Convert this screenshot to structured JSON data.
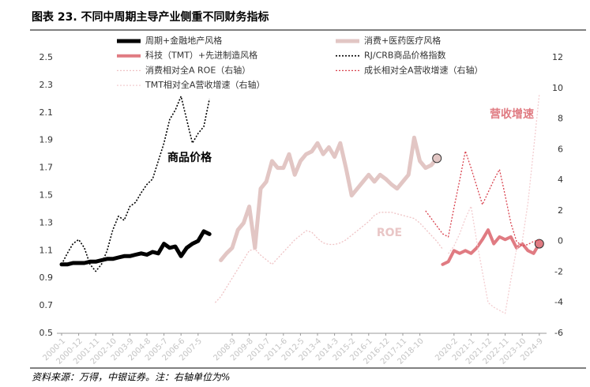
{
  "chart_data": {
    "type": "line",
    "title": "图表 23. 不同中周期主导产业侧重不同财务指标",
    "source": "资料来源：万得，中银证券。注：右轴单位为%",
    "annotations": [
      "商品价格",
      "ROE",
      "营收增速"
    ],
    "categories": [
      "2000-1",
      null,
      null,
      "2000-12",
      null,
      null,
      "2001-11",
      null,
      null,
      "2002-10",
      null,
      null,
      "2003-9",
      null,
      null,
      "2004-8",
      null,
      null,
      "2005-7",
      null,
      null,
      "2006-6",
      null,
      null,
      "2007-5",
      null,
      null,
      null,
      null,
      null,
      "2008-9",
      null,
      null,
      "2009-8",
      null,
      null,
      "2010-7",
      null,
      null,
      "2011-6",
      null,
      null,
      "2012-5",
      null,
      null,
      "2013-4",
      null,
      null,
      "2014-3",
      null,
      null,
      "2015-2",
      null,
      null,
      "2016-1",
      null,
      null,
      "2016-12",
      null,
      null,
      "2017-11",
      null,
      null,
      "2018-10",
      null,
      null,
      null,
      null,
      null,
      "2020-2",
      null,
      null,
      "2021-1",
      null,
      null,
      "2021-12",
      null,
      null,
      "2022-11",
      null,
      null,
      "2023-10",
      null,
      null,
      "2024-9"
    ],
    "ylim": [
      0.5,
      2.5
    ],
    "yticks": [
      0.5,
      0.7,
      0.9,
      1.1,
      1.3,
      1.5,
      1.7,
      1.9,
      2.1,
      2.3,
      2.5
    ],
    "y2lim": [
      -6,
      12
    ],
    "y2ticks": [
      -6,
      -4,
      -2,
      0,
      2,
      4,
      6,
      8,
      10,
      12
    ],
    "grid": false,
    "series": [
      {
        "name": "周期+金融地产风格",
        "color": "#000000",
        "line_width": 5,
        "dash": "none",
        "values": [
          1.0,
          1.0,
          1.01,
          1.01,
          1.01,
          1.02,
          1.02,
          1.03,
          1.04,
          1.04,
          1.05,
          1.06,
          1.06,
          1.07,
          1.08,
          1.07,
          1.09,
          1.08,
          1.15,
          1.12,
          1.13,
          1.06,
          1.12,
          1.15,
          1.17,
          1.24,
          1.22,
          null,
          null,
          null,
          null,
          null,
          null,
          null,
          null,
          null,
          null,
          null,
          null,
          null,
          null,
          null,
          null,
          null,
          null,
          null,
          null,
          null,
          null,
          null,
          null,
          null,
          null,
          null,
          null,
          null,
          null,
          null,
          null,
          null,
          null,
          null,
          null,
          null,
          null,
          null,
          null,
          null,
          null,
          null,
          null,
          null,
          null,
          null,
          null,
          null,
          null,
          null,
          null,
          null,
          null,
          null,
          null,
          null,
          null
        ]
      },
      {
        "name": "消费+医药医疗风格",
        "color": "#e2c6c4",
        "line_width": 5,
        "dash": "none",
        "end_marker": true,
        "values": [
          null,
          null,
          null,
          null,
          null,
          null,
          null,
          null,
          null,
          null,
          null,
          null,
          null,
          null,
          null,
          null,
          null,
          null,
          null,
          null,
          null,
          null,
          null,
          null,
          null,
          null,
          null,
          null,
          1.03,
          1.08,
          1.12,
          1.25,
          1.3,
          1.42,
          1.12,
          1.55,
          1.6,
          1.75,
          1.7,
          1.7,
          1.8,
          1.65,
          1.75,
          1.8,
          1.82,
          1.88,
          1.8,
          1.85,
          1.78,
          1.88,
          1.7,
          1.5,
          1.55,
          1.6,
          1.65,
          1.6,
          1.65,
          1.62,
          1.58,
          1.55,
          1.6,
          1.65,
          1.92,
          1.75,
          1.7,
          1.72,
          1.77,
          null,
          null,
          null,
          null,
          null,
          null,
          null,
          null,
          null,
          null,
          null,
          null,
          null,
          null,
          null,
          null,
          null,
          null
        ]
      },
      {
        "name": "科技（TMT）+先进制造风格",
        "color": "#e07b82",
        "line_width": 4,
        "dash": "none",
        "end_marker": true,
        "values": [
          null,
          null,
          null,
          null,
          null,
          null,
          null,
          null,
          null,
          null,
          null,
          null,
          null,
          null,
          null,
          null,
          null,
          null,
          null,
          null,
          null,
          null,
          null,
          null,
          null,
          null,
          null,
          null,
          null,
          null,
          null,
          null,
          null,
          null,
          null,
          null,
          null,
          null,
          null,
          null,
          null,
          null,
          null,
          null,
          null,
          null,
          null,
          null,
          null,
          null,
          null,
          null,
          null,
          null,
          null,
          null,
          null,
          null,
          null,
          null,
          null,
          null,
          null,
          null,
          null,
          null,
          null,
          1.0,
          1.02,
          1.1,
          1.08,
          1.1,
          1.08,
          1.12,
          1.18,
          1.25,
          1.15,
          1.2,
          1.18,
          1.2,
          1.12,
          1.15,
          1.1,
          1.08,
          1.15
        ]
      },
      {
        "name": "RJ/CRB商品价格指数",
        "color": "#000000",
        "line_width": 1.6,
        "dash": "2 2",
        "values": [
          1.0,
          1.08,
          1.15,
          1.18,
          1.12,
          1.0,
          0.95,
          1.0,
          1.1,
          1.25,
          1.35,
          1.32,
          1.42,
          1.45,
          1.52,
          1.58,
          1.62,
          1.75,
          1.88,
          2.05,
          2.12,
          2.22,
          2.05,
          1.88,
          1.95,
          2.0,
          2.2,
          null,
          null,
          null,
          null,
          null,
          null,
          null,
          null,
          null,
          null,
          null,
          null,
          null,
          null,
          null,
          null,
          null,
          null,
          null,
          null,
          null,
          null,
          null,
          null,
          null,
          null,
          null,
          null,
          null,
          null,
          null,
          null,
          null,
          null,
          null,
          null,
          null,
          null,
          null,
          null,
          null,
          null,
          null,
          null,
          null,
          null,
          null,
          null,
          null,
          null,
          null,
          null,
          null,
          null,
          null,
          null,
          null,
          null
        ]
      },
      {
        "name": "消费相对全A ROE（右轴）",
        "color": "#efc3c5",
        "line_width": 1.3,
        "dash": "2 2",
        "axis": "y2",
        "values": [
          null,
          null,
          null,
          null,
          null,
          null,
          null,
          null,
          null,
          null,
          null,
          null,
          null,
          null,
          null,
          null,
          null,
          null,
          null,
          null,
          null,
          null,
          null,
          null,
          null,
          null,
          null,
          -4,
          -3.6,
          -3,
          -2.4,
          -1.8,
          -1.2,
          -0.6,
          -0.5,
          -0.9,
          -1.2,
          -1.5,
          -1.1,
          -0.7,
          -0.3,
          0.1,
          0.4,
          0.7,
          0.6,
          0.2,
          -0.1,
          -0.2,
          -0.2,
          -0.1,
          0.1,
          0.4,
          0.7,
          1,
          1.3,
          1.7,
          1.9,
          1.9,
          1.9,
          1.8,
          1.7,
          1.6,
          1.5,
          1.2,
          0.8,
          0.4,
          0,
          -0.5,
          null,
          null,
          null,
          null,
          null,
          null,
          null,
          null,
          null,
          null,
          null,
          null,
          null,
          null,
          null,
          null,
          null
        ]
      },
      {
        "name": "成长相对全A营收增速（右轴）",
        "color": "#d9434f",
        "line_width": 1.3,
        "dash": "2 2",
        "axis": "y2",
        "values": [
          null,
          null,
          null,
          null,
          null,
          null,
          null,
          null,
          null,
          null,
          null,
          null,
          null,
          null,
          null,
          null,
          null,
          null,
          null,
          null,
          null,
          null,
          null,
          null,
          null,
          null,
          null,
          null,
          null,
          null,
          null,
          null,
          null,
          null,
          null,
          null,
          null,
          null,
          null,
          null,
          null,
          null,
          null,
          null,
          null,
          null,
          null,
          null,
          null,
          null,
          null,
          null,
          null,
          null,
          null,
          null,
          null,
          null,
          null,
          null,
          null,
          null,
          null,
          null,
          2.0,
          1.5,
          1.0,
          0.5,
          0.3,
          2.2,
          4.0,
          5.9,
          4.8,
          3.6,
          2.4,
          3.2,
          4.0,
          4.7,
          3.0,
          1.2,
          0,
          -0.3,
          -0.2,
          0,
          0.1
        ]
      },
      {
        "name": "TMT相对全A营收增速（右轴）",
        "color": "#f3cdd0",
        "line_width": 1.3,
        "dash": "2 2",
        "axis": "y2",
        "values": [
          null,
          null,
          null,
          null,
          null,
          null,
          null,
          null,
          null,
          null,
          null,
          null,
          null,
          null,
          null,
          null,
          null,
          null,
          null,
          null,
          null,
          null,
          null,
          null,
          null,
          null,
          null,
          null,
          null,
          null,
          null,
          null,
          null,
          null,
          null,
          null,
          null,
          null,
          null,
          null,
          null,
          null,
          null,
          null,
          null,
          null,
          null,
          null,
          null,
          null,
          null,
          null,
          null,
          null,
          null,
          null,
          null,
          null,
          null,
          null,
          null,
          null,
          null,
          null,
          null,
          null,
          null,
          null,
          -0.8,
          -0.3,
          0.5,
          1.5,
          2.3,
          0,
          -2,
          -4,
          -4.3,
          -4.5,
          -4.7,
          -2.5,
          -0.5,
          0,
          2.5,
          6,
          9.6
        ]
      }
    ]
  }
}
